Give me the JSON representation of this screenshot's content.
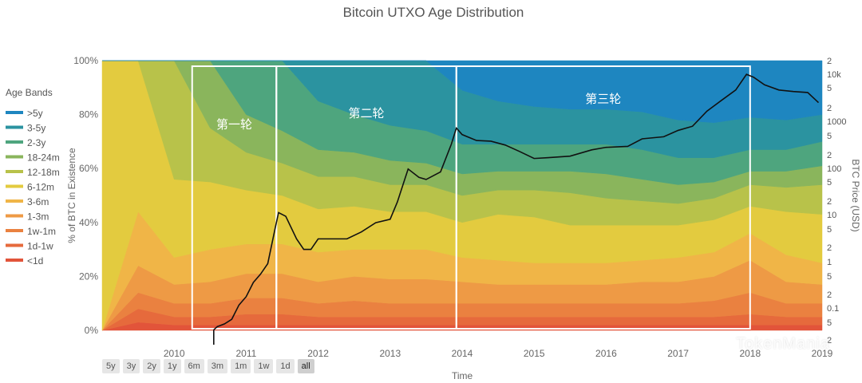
{
  "chart_data": {
    "type": "area",
    "title": "Bitcoin UTXO Age Distribution",
    "xlabel": "Time",
    "ylabel": "% of BTC in Existence",
    "y2label": "BTC Price (USD)",
    "ylim": [
      0,
      100
    ],
    "y2_scale": "log",
    "x_ticks": [
      "2010",
      "2011",
      "2012",
      "2013",
      "2014",
      "2015",
      "2016",
      "2017",
      "2018",
      "2019"
    ],
    "y_ticks": [
      "0%",
      "20%",
      "40%",
      "60%",
      "80%",
      "100%"
    ],
    "y2_ticks": [
      "2",
      "10k",
      "5",
      "2",
      "1000",
      "5",
      "2",
      "100",
      "5",
      "2",
      "10",
      "5",
      "2",
      "1",
      "5",
      "2",
      "0.1",
      "5",
      "2"
    ],
    "legend_title": "Age Bands",
    "legend_position": "left",
    "years": [
      2009.0,
      2009.5,
      2010.0,
      2010.5,
      2011.0,
      2011.5,
      2012.0,
      2012.5,
      2013.0,
      2013.5,
      2014.0,
      2014.5,
      2015.0,
      2015.5,
      2016.0,
      2016.5,
      2017.0,
      2017.5,
      2018.0,
      2018.5,
      2019.0
    ],
    "series": [
      {
        "name": "<1d",
        "color": "#e2543a",
        "values": [
          0,
          3,
          2,
          2,
          2,
          2,
          2,
          2,
          2,
          2,
          2,
          2,
          2,
          2,
          2,
          2,
          2,
          2,
          2,
          2,
          2
        ]
      },
      {
        "name": "1d-1w",
        "color": "#e66a3c",
        "values": [
          0,
          5,
          3,
          3,
          4,
          4,
          3,
          3,
          3,
          3,
          3,
          3,
          3,
          3,
          3,
          3,
          3,
          3,
          4,
          3,
          3
        ]
      },
      {
        "name": "1w-1m",
        "color": "#ea8140",
        "values": [
          0,
          6,
          5,
          5,
          6,
          6,
          5,
          6,
          5,
          5,
          5,
          5,
          5,
          5,
          5,
          5,
          5,
          6,
          8,
          5,
          5
        ]
      },
      {
        "name": "1-3m",
        "color": "#ee9a45",
        "values": [
          0,
          10,
          7,
          8,
          9,
          9,
          8,
          9,
          9,
          9,
          8,
          7,
          7,
          7,
          7,
          8,
          8,
          9,
          12,
          8,
          7
        ]
      },
      {
        "name": "3-6m",
        "color": "#f0b547",
        "values": [
          0,
          20,
          10,
          12,
          11,
          11,
          11,
          10,
          11,
          11,
          9,
          9,
          8,
          8,
          8,
          8,
          9,
          9,
          10,
          10,
          8
        ]
      },
      {
        "name": "6-12m",
        "color": "#e3cb3f",
        "values": [
          100,
          56,
          29,
          25,
          20,
          18,
          16,
          16,
          14,
          14,
          13,
          17,
          17,
          14,
          14,
          13,
          12,
          12,
          10,
          16,
          18
        ]
      },
      {
        "name": "12-18m",
        "color": "#b8c24a",
        "values": [
          0,
          0,
          44,
          20,
          14,
          12,
          12,
          11,
          10,
          10,
          10,
          9,
          10,
          12,
          10,
          9,
          8,
          8,
          8,
          9,
          11
        ]
      },
      {
        "name": "18-24m",
        "color": "#8ab55c",
        "values": [
          0,
          0,
          0,
          25,
          14,
          12,
          10,
          9,
          9,
          8,
          8,
          7,
          7,
          8,
          9,
          8,
          7,
          6,
          5,
          6,
          7
        ]
      },
      {
        "name": "2-3y",
        "color": "#4ea57e",
        "values": [
          0,
          0,
          0,
          0,
          20,
          26,
          18,
          14,
          13,
          12,
          11,
          10,
          10,
          10,
          11,
          11,
          10,
          9,
          8,
          8,
          9
        ]
      },
      {
        "name": "3-5y",
        "color": "#2b93a0",
        "values": [
          0,
          0,
          0,
          0,
          0,
          0,
          15,
          20,
          24,
          26,
          20,
          16,
          14,
          13,
          13,
          14,
          14,
          13,
          12,
          11,
          10
        ]
      },
      {
        "name": ">5y",
        "color": "#1e86c0",
        "values": [
          0,
          0,
          0,
          0,
          0,
          0,
          0,
          0,
          0,
          0,
          11,
          15,
          17,
          18,
          18,
          19,
          22,
          23,
          21,
          22,
          20
        ]
      }
    ],
    "price_series": {
      "name": "BTC Price (USD)",
      "color": "#111111",
      "x": [
        2010.55,
        2010.6,
        2010.7,
        2010.8,
        2010.9,
        2011.0,
        2011.1,
        2011.2,
        2011.3,
        2011.4,
        2011.45,
        2011.55,
        2011.7,
        2011.8,
        2011.9,
        2012.0,
        2012.2,
        2012.4,
        2012.6,
        2012.8,
        2013.0,
        2013.1,
        2013.25,
        2013.4,
        2013.5,
        2013.7,
        2013.85,
        2013.92,
        2014.0,
        2014.2,
        2014.4,
        2014.6,
        2014.8,
        2015.0,
        2015.2,
        2015.5,
        2015.8,
        2016.0,
        2016.3,
        2016.5,
        2016.8,
        2017.0,
        2017.2,
        2017.4,
        2017.6,
        2017.8,
        2017.95,
        2018.05,
        2018.2,
        2018.4,
        2018.6,
        2018.8,
        2018.95
      ],
      "y": [
        0.06,
        0.07,
        0.08,
        0.1,
        0.2,
        0.3,
        0.6,
        0.9,
        1.5,
        8,
        18,
        15,
        5,
        3,
        3,
        5,
        5,
        5,
        7,
        11,
        13,
        30,
        150,
        100,
        90,
        130,
        500,
        1100,
        800,
        600,
        580,
        480,
        350,
        250,
        260,
        280,
        380,
        430,
        450,
        650,
        720,
        980,
        1200,
        2500,
        4200,
        7000,
        15000,
        13000,
        9000,
        7000,
        6500,
        6200,
        3800
      ]
    },
    "regions": [
      {
        "label": "第一轮",
        "start": 2010.25,
        "end": 2011.42
      },
      {
        "label": "第二轮",
        "start": 2011.42,
        "end": 2013.92
      },
      {
        "label": "第三轮",
        "start": 2013.92,
        "end": 2018.0
      }
    ]
  },
  "ui": {
    "range_buttons": [
      "5y",
      "3y",
      "2y",
      "1y",
      "6m",
      "3m",
      "1m",
      "1w",
      "1d",
      "all"
    ],
    "active_range": "all",
    "watermark": "TokenMania"
  }
}
